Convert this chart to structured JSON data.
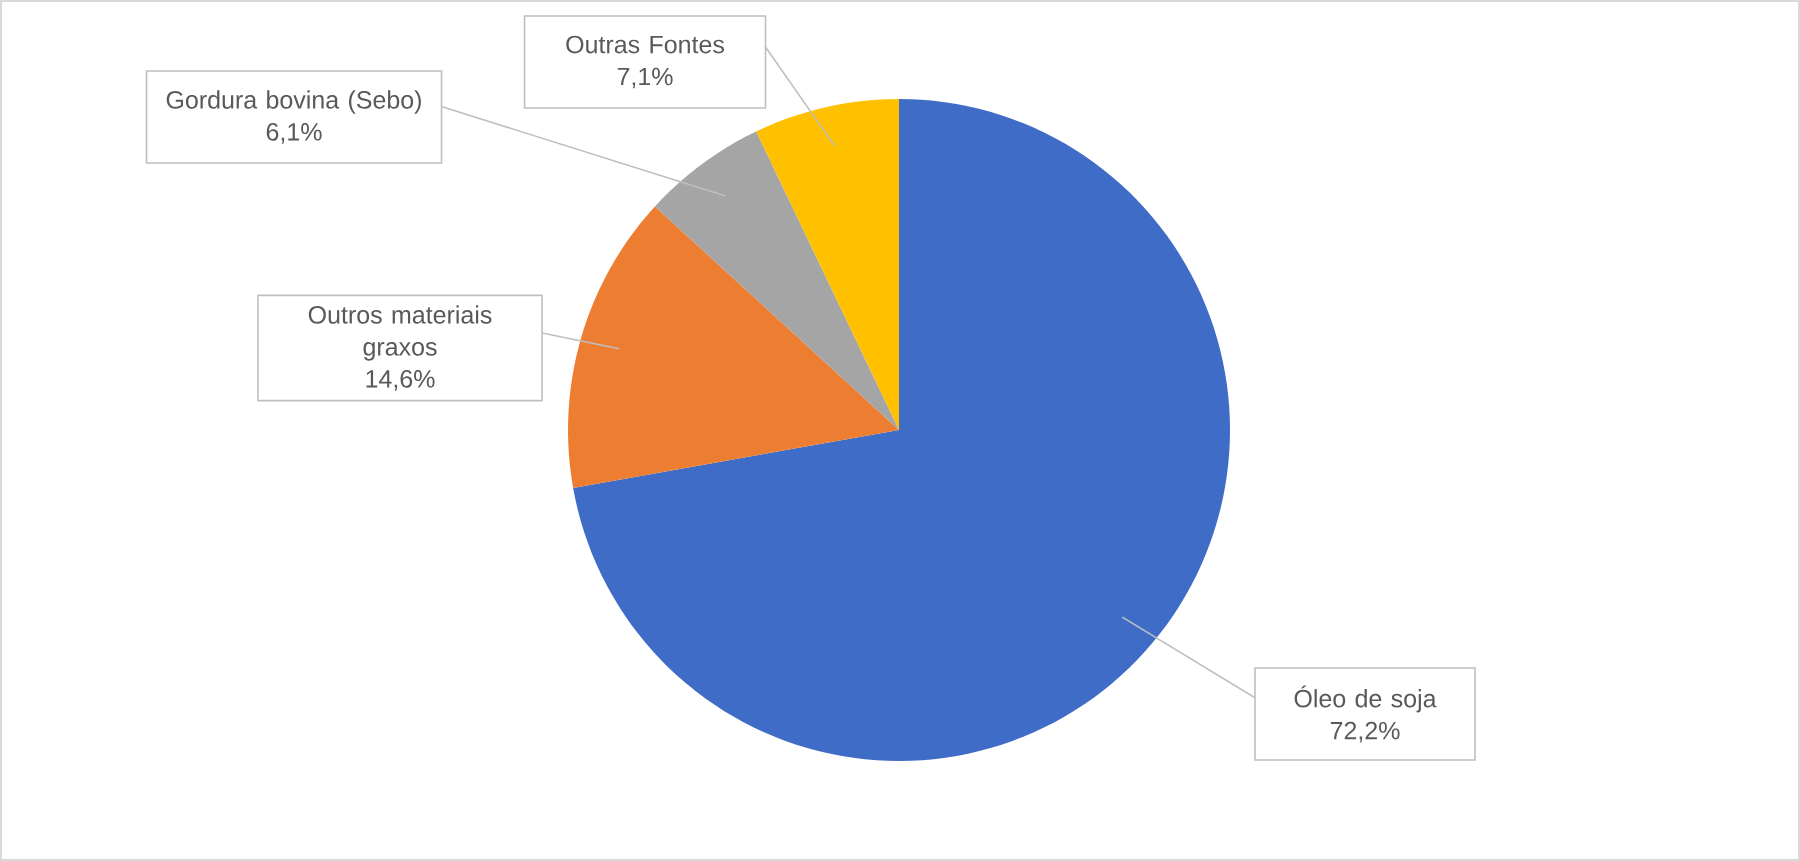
{
  "chart_data": {
    "type": "pie",
    "categories": [
      "Óleo de soja",
      "Outros materiais graxos",
      "Gordura bovina (Sebo)",
      "Outras Fontes"
    ],
    "values": [
      72.2,
      14.6,
      6.1,
      7.1
    ],
    "colors": [
      "#3f6cc6",
      "#ed7d31",
      "#a5a5a5",
      "#ffc000"
    ],
    "value_labels": [
      "72,2%",
      "14,6%",
      "6,1%",
      "7,1%"
    ]
  }
}
